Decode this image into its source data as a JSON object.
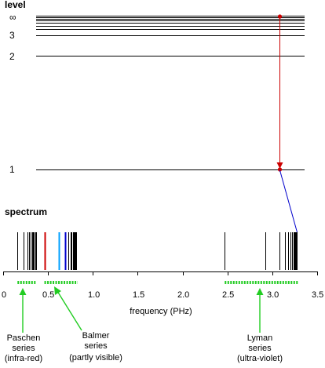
{
  "headings": {
    "level": "level",
    "spectrum": "spectrum"
  },
  "level_labels": {
    "infinity": "∞",
    "l3": "3",
    "l2": "2",
    "l1": "1"
  },
  "axis": {
    "label": "frequency (PHz)",
    "ticks": [
      "0",
      "0.5",
      "1.0",
      "1.5",
      "2.0",
      "2.5",
      "3.0",
      "3.5"
    ],
    "xlim": [
      0,
      3.5
    ]
  },
  "series": [
    {
      "line1": "Paschen",
      "line2": "series",
      "line3": "(infra-red)"
    },
    {
      "line1": "Balmer",
      "line2": "series",
      "line3": "(partly visible)"
    },
    {
      "line1": "Lyman",
      "line2": "series",
      "line3": "(ultra-violet)"
    }
  ],
  "chart_data": {
    "type": "spectrum",
    "x_unit": "PHz",
    "lines": [
      {
        "f": 0.16,
        "color": "#000000"
      },
      {
        "f": 0.23,
        "color": "#000000"
      },
      {
        "f": 0.27,
        "color": "#000000"
      },
      {
        "f": 0.29,
        "color": "#000000"
      },
      {
        "f": 0.31,
        "color": "#000000"
      },
      {
        "f": 0.325,
        "color": "#000000"
      },
      {
        "f": 0.335,
        "color": "#000000"
      },
      {
        "f": 0.345,
        "color": "#000000"
      },
      {
        "f": 0.355,
        "color": "#000000"
      },
      {
        "f": 0.365,
        "color": "#000000"
      },
      {
        "f": 0.46,
        "color": "#cc0000"
      },
      {
        "f": 0.62,
        "color": "#00a0ff"
      },
      {
        "f": 0.69,
        "color": "#0000cc"
      },
      {
        "f": 0.73,
        "color": "#000000"
      },
      {
        "f": 0.75,
        "color": "#000000"
      },
      {
        "f": 0.765,
        "color": "#000000"
      },
      {
        "f": 0.775,
        "color": "#000000"
      },
      {
        "f": 0.785,
        "color": "#000000"
      },
      {
        "f": 0.795,
        "color": "#000000"
      },
      {
        "f": 0.805,
        "color": "#000000"
      },
      {
        "f": 0.815,
        "color": "#000000"
      },
      {
        "f": 2.47,
        "color": "#000000"
      },
      {
        "f": 2.92,
        "color": "#000000"
      },
      {
        "f": 3.08,
        "color": "#000000"
      },
      {
        "f": 3.14,
        "color": "#000000"
      },
      {
        "f": 3.18,
        "color": "#000000"
      },
      {
        "f": 3.205,
        "color": "#000000"
      },
      {
        "f": 3.22,
        "color": "#000000"
      },
      {
        "f": 3.235,
        "color": "#000000"
      },
      {
        "f": 3.245,
        "color": "#000000"
      },
      {
        "f": 3.255,
        "color": "#000000"
      },
      {
        "f": 3.265,
        "color": "#000000"
      },
      {
        "f": 3.275,
        "color": "#000000"
      }
    ],
    "series_ranges": [
      [
        0.16,
        0.37
      ],
      [
        0.46,
        0.83
      ],
      [
        2.47,
        3.29
      ]
    ],
    "transition_f": 3.08,
    "arrow_color": "#cc0000",
    "link_color": "#0000cc",
    "range_color": "#22cc22"
  }
}
